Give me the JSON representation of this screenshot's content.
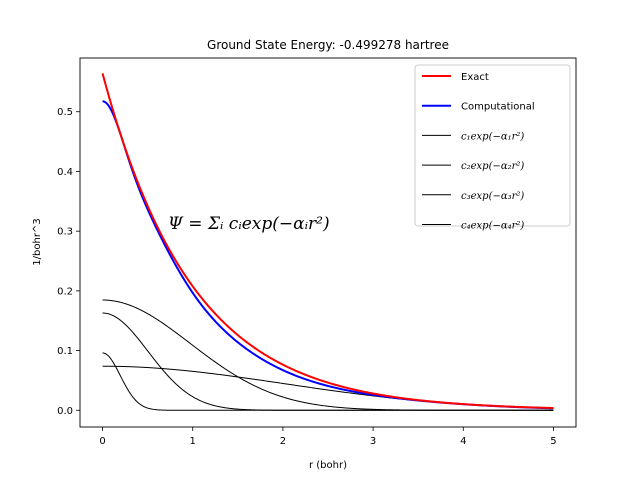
{
  "chart_data": {
    "type": "line",
    "title": "Ground State Energy: -0.499278 hartree",
    "xlabel": "r (bohr)",
    "ylabel": "1/bohr^3",
    "xlim": [
      -0.25,
      5.25
    ],
    "ylim": [
      -0.028,
      0.59
    ],
    "xticks": [
      0,
      1,
      2,
      3,
      4,
      5
    ],
    "yticks": [
      0.0,
      0.1,
      0.2,
      0.3,
      0.4,
      0.5
    ],
    "grid": false,
    "legend_position": "top-right",
    "annotation": "Ψ = Σᵢ cᵢexp(−αᵢr²)",
    "series": [
      {
        "name": "Exact",
        "color": "#ff0000",
        "kind": "exact",
        "coef": 0.5642,
        "rate": 1.0,
        "linewidth": 2
      },
      {
        "name": "Computational",
        "color": "#0000ff",
        "kind": "sum",
        "linewidth": 2
      },
      {
        "name": "c₁exp(−α₁r²)",
        "color": "#000000",
        "kind": "gaussian",
        "c": 0.0738,
        "alpha": 0.1241,
        "linewidth": 1
      },
      {
        "name": "c₂exp(−α₂r²)",
        "color": "#000000",
        "kind": "gaussian",
        "c": 0.1847,
        "alpha": 0.5296,
        "linewidth": 1
      },
      {
        "name": "c₃exp(−α₃r²)",
        "color": "#000000",
        "kind": "gaussian",
        "c": 0.1629,
        "alpha": 1.971,
        "linewidth": 1
      },
      {
        "name": "c₄exp(−α₄r²)",
        "color": "#000000",
        "kind": "gaussian",
        "c": 0.0961,
        "alpha": 13.0,
        "linewidth": 1
      }
    ],
    "legend": [
      {
        "text": "Exact",
        "math": false
      },
      {
        "text": "Computational",
        "math": false
      },
      {
        "text": "c₁exp(−α₁r²)",
        "math": true
      },
      {
        "text": "c₂exp(−α₂r²)",
        "math": true
      },
      {
        "text": "c₃exp(−α₃r²)",
        "math": true
      },
      {
        "text": "c₄exp(−α₄r²)",
        "math": true
      }
    ]
  }
}
